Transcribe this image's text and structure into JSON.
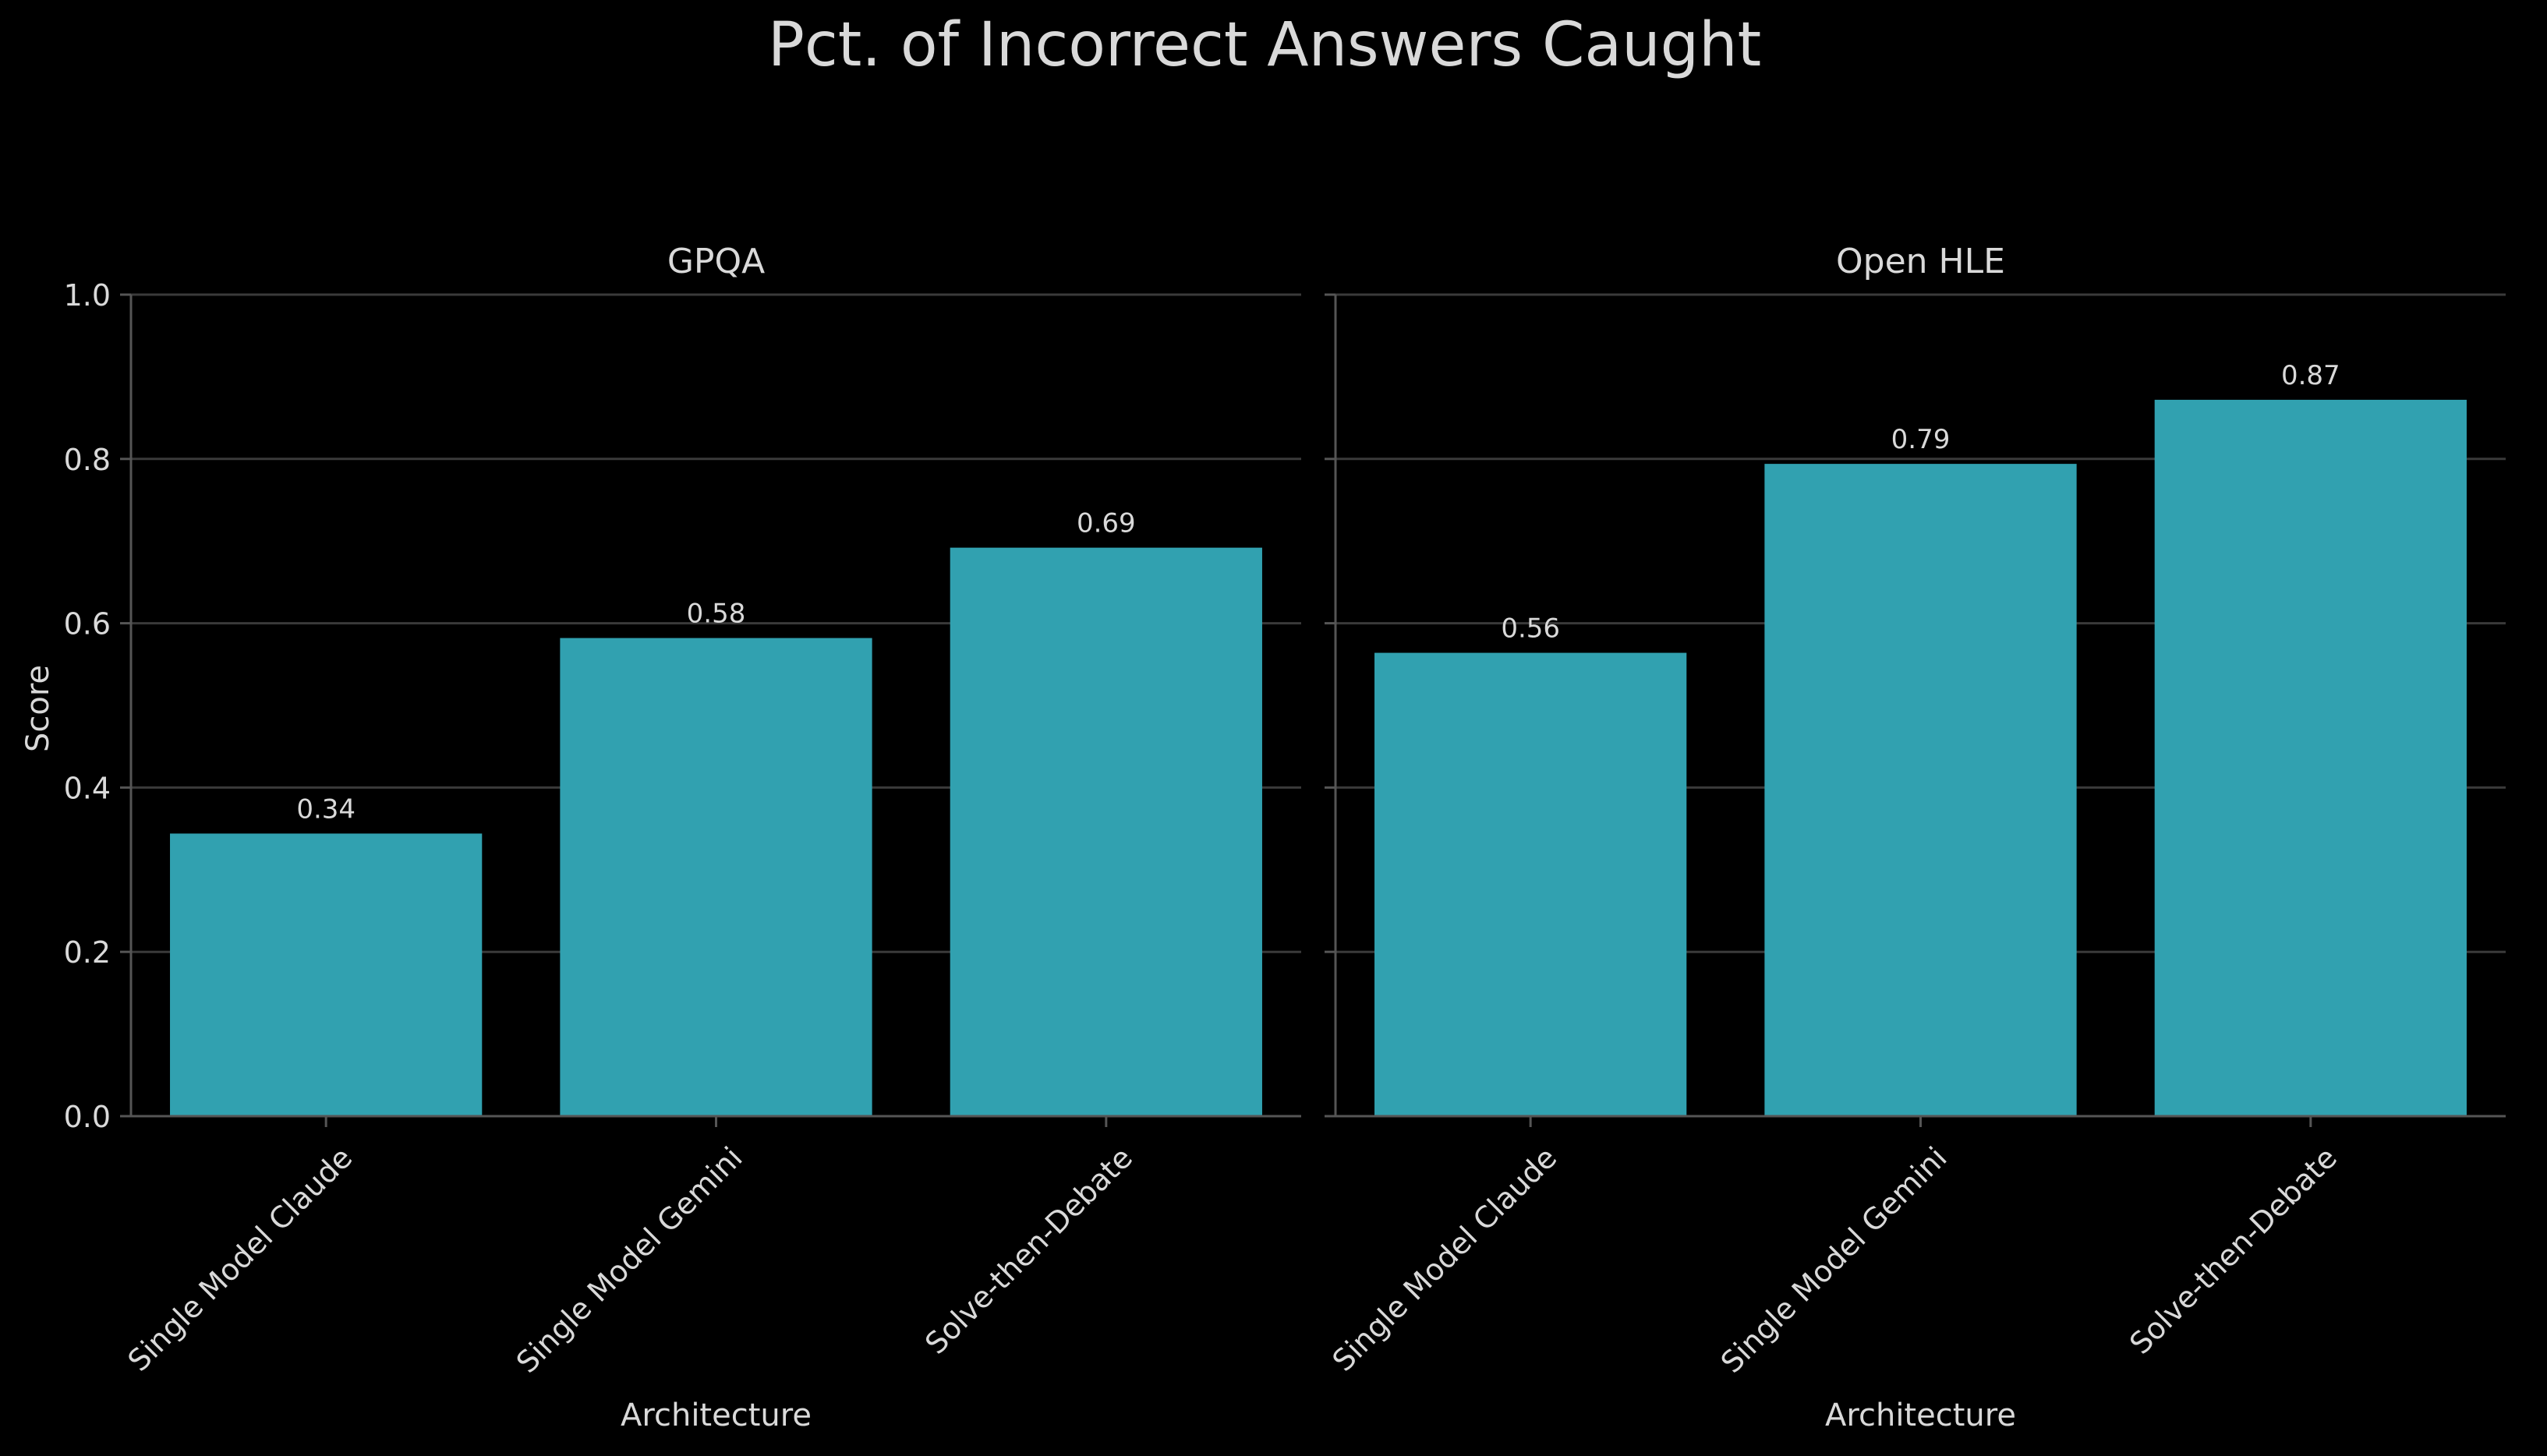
{
  "figure": {
    "title": "Pct. of Incorrect Answers Caught"
  },
  "colors": {
    "background": "#000000",
    "bar": "#31a1b0",
    "text": "#d9d9d9",
    "grid": "#3a3a3a",
    "spine": "#555555"
  },
  "chart_data": [
    {
      "type": "bar",
      "title": "GPQA",
      "xlabel": "Architecture",
      "ylabel": "Score",
      "ylim": [
        0,
        1.0
      ],
      "yticks": [
        "0.0",
        "0.2",
        "0.4",
        "0.6",
        "0.8",
        "1.0"
      ],
      "grid": true,
      "categories": [
        "Single Model Claude",
        "Single Model Gemini",
        "Solve-then-Debate"
      ],
      "values": [
        0.344,
        0.582,
        0.692
      ],
      "value_labels": [
        "0.34",
        "0.58",
        "0.69"
      ]
    },
    {
      "type": "bar",
      "title": "Open HLE",
      "xlabel": "Architecture",
      "ylabel": "",
      "ylim": [
        0,
        1.0
      ],
      "yticks": [],
      "grid": true,
      "categories": [
        "Single Model Claude",
        "Single Model Gemini",
        "Solve-then-Debate"
      ],
      "values": [
        0.564,
        0.794,
        0.872
      ],
      "value_labels": [
        "0.56",
        "0.79",
        "0.87"
      ]
    }
  ]
}
